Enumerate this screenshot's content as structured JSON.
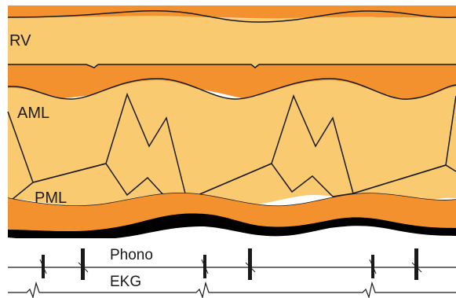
{
  "labels": {
    "rv": "RV",
    "aml": "AML",
    "pml": "PML",
    "phono": "Phono",
    "ekg": "EKG"
  },
  "colors": {
    "band_light": "#f9ca6f",
    "band_dark": "#f3912e",
    "tissue_black": "#000000",
    "line": "#1a1a1a",
    "background": "#ffffff"
  }
}
